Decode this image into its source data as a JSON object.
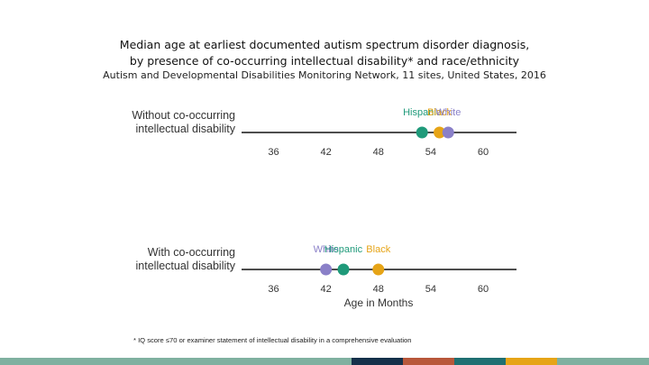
{
  "title_line1": "Median age at earliest documented autism spectrum disorder diagnosis,",
  "title_line2": "by presence of co-occurring intellectual disability* and race/ethnicity",
  "subtitle": "Autism and Developmental Disabilities Monitoring Network, 11 sites, United States, 2016",
  "footnote": "* IQ score ≤70 or examiner statement of intellectual disability in a comprehensive evaluation",
  "colors": {
    "Hispanic": "#1f9a7a",
    "Black": "#e6a417",
    "White": "#8a80c8",
    "axis": "#4d4d4d",
    "band": [
      "#7fb0a0",
      "#14304a",
      "#b8573a",
      "#1f6f72",
      "#e6a417",
      "#7fb0a0"
    ]
  },
  "chart_data": {
    "type": "scatter",
    "xlabel": "Age in Months",
    "xlim": [
      30,
      62
    ],
    "xticks": [
      36,
      42,
      48,
      54,
      60
    ],
    "panels": [
      {
        "label_line1": "Without co-occurring",
        "label_line2": "intellectual disability",
        "points": [
          {
            "group": "Hispanic",
            "value": 53
          },
          {
            "group": "Black",
            "value": 55
          },
          {
            "group": "White",
            "value": 56
          }
        ]
      },
      {
        "label_line1": "With co-occurring",
        "label_line2": "intellectual disability",
        "points": [
          {
            "group": "White",
            "value": 42
          },
          {
            "group": "Hispanic",
            "value": 44
          },
          {
            "group": "Black",
            "value": 48
          }
        ]
      }
    ]
  }
}
